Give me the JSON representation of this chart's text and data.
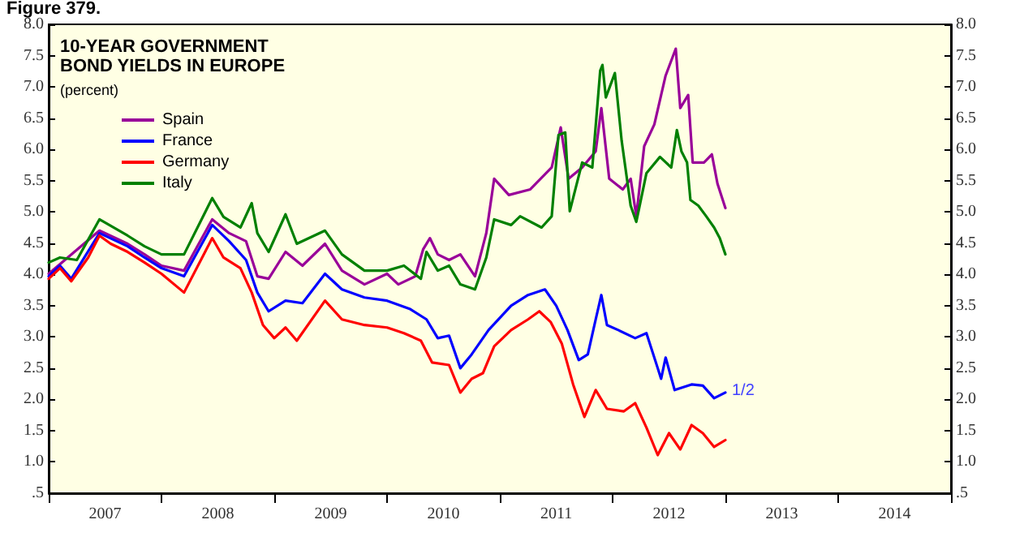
{
  "chart_data": {
    "type": "line",
    "title": "10-YEAR GOVERNMENT BOND YIELDS IN EUROPE",
    "subtitle": "(percent)",
    "annotations": [
      "Figure 379.",
      {
        "text": "1/2",
        "x": 2013.0,
        "y": 2.11
      }
    ],
    "legend": "top left",
    "marker": "none",
    "line_style": "solid",
    "xlim": [
      2007,
      2015
    ],
    "xticks": [
      {
        "value": 2007,
        "label": null
      },
      {
        "value": 2007.5,
        "label": "2007"
      },
      {
        "value": 2008,
        "label": null
      },
      {
        "value": 2008.5,
        "label": "2008"
      },
      {
        "value": 2009,
        "label": null
      },
      {
        "value": 2009.5,
        "label": "2009"
      },
      {
        "value": 2010,
        "label": null
      },
      {
        "value": 2010.5,
        "label": "2010"
      },
      {
        "value": 2011,
        "label": null
      },
      {
        "value": 2011.5,
        "label": "2011"
      },
      {
        "value": 2012,
        "label": null
      },
      {
        "value": 2012.5,
        "label": "2012"
      },
      {
        "value": 2013,
        "label": null
      },
      {
        "value": 2013.5,
        "label": "2013"
      },
      {
        "value": 2014,
        "label": null
      },
      {
        "value": 2014.5,
        "label": "2014"
      },
      {
        "value": 2015,
        "label": null
      }
    ],
    "ylim": [
      0.5,
      8.0
    ],
    "yticks": [
      {
        "value": 0.5,
        "label": ".5"
      },
      {
        "value": 1.0,
        "label": "1.0"
      },
      {
        "value": 1.5,
        "label": "1.5"
      },
      {
        "value": 2.0,
        "label": "2.0"
      },
      {
        "value": 2.5,
        "label": "2.5"
      },
      {
        "value": 3.0,
        "label": "3.0"
      },
      {
        "value": 3.5,
        "label": "3.5"
      },
      {
        "value": 4.0,
        "label": "4.0"
      },
      {
        "value": 4.5,
        "label": "4.5"
      },
      {
        "value": 5.0,
        "label": "5.0"
      },
      {
        "value": 5.5,
        "label": "5.5"
      },
      {
        "value": 6.0,
        "label": "6.0"
      },
      {
        "value": 6.5,
        "label": "6.5"
      },
      {
        "value": 7.0,
        "label": "7.0"
      },
      {
        "value": 7.5,
        "label": "7.5"
      },
      {
        "value": 8.0,
        "label": "8.0"
      }
    ],
    "y2lim": [
      0.5,
      8.0
    ],
    "y2ticks": [
      {
        "value": 0.5,
        "label": ".5"
      },
      {
        "value": 1.0,
        "label": "1.0"
      },
      {
        "value": 1.5,
        "label": "1.5"
      },
      {
        "value": 2.0,
        "label": "2.0"
      },
      {
        "value": 2.5,
        "label": "2.5"
      },
      {
        "value": 3.0,
        "label": "3.0"
      },
      {
        "value": 3.5,
        "label": "3.5"
      },
      {
        "value": 4.0,
        "label": "4.0"
      },
      {
        "value": 4.5,
        "label": "4.5"
      },
      {
        "value": 5.0,
        "label": "5.0"
      },
      {
        "value": 5.5,
        "label": "5.5"
      },
      {
        "value": 6.0,
        "label": "6.0"
      },
      {
        "value": 6.5,
        "label": "6.5"
      },
      {
        "value": 7.0,
        "label": "7.0"
      },
      {
        "value": 7.5,
        "label": "7.5"
      },
      {
        "value": 8.0,
        "label": "8.0"
      }
    ],
    "series": [
      {
        "name": "Spain",
        "color": "#990099",
        "x": [
          2007.0,
          2007.45,
          2007.7,
          2007.85,
          2008.0,
          2008.2,
          2008.45,
          2008.6,
          2008.75,
          2008.85,
          2008.95,
          2009.1,
          2009.25,
          2009.45,
          2009.6,
          2009.8,
          2010.0,
          2010.1,
          2010.25,
          2010.32,
          2010.38,
          2010.45,
          2010.55,
          2010.65,
          2010.78,
          2010.88,
          2010.95,
          2011.08,
          2011.27,
          2011.46,
          2011.54,
          2011.61,
          2011.73,
          2011.85,
          2011.9,
          2011.97,
          2012.09,
          2012.16,
          2012.21,
          2012.28,
          2012.37,
          2012.47,
          2012.56,
          2012.6,
          2012.67,
          2012.71,
          2012.81,
          2012.88,
          2012.93,
          2013.0
        ],
        "values": [
          4.01,
          4.7,
          4.49,
          4.32,
          4.14,
          4.06,
          4.88,
          4.66,
          4.53,
          3.97,
          3.93,
          4.36,
          4.14,
          4.49,
          4.06,
          3.84,
          4.01,
          3.84,
          3.97,
          4.4,
          4.58,
          4.32,
          4.23,
          4.32,
          3.97,
          4.66,
          5.53,
          5.27,
          5.36,
          5.71,
          6.35,
          5.53,
          5.71,
          5.97,
          6.66,
          5.53,
          5.36,
          5.53,
          4.93,
          6.05,
          6.4,
          7.18,
          7.61,
          6.66,
          6.87,
          5.79,
          5.79,
          5.92,
          5.45,
          5.06
        ]
      },
      {
        "name": "France",
        "color": "#0000ff",
        "x": [
          2007.0,
          2007.1,
          2007.2,
          2007.45,
          2007.7,
          2007.85,
          2008.0,
          2008.2,
          2008.45,
          2008.6,
          2008.75,
          2008.85,
          2008.95,
          2009.1,
          2009.25,
          2009.45,
          2009.6,
          2009.8,
          2010.0,
          2010.2,
          2010.35,
          2010.45,
          2010.55,
          2010.65,
          2010.75,
          2010.9,
          2011.1,
          2011.25,
          2011.4,
          2011.5,
          2011.6,
          2011.7,
          2011.78,
          2011.85,
          2011.9,
          2011.95,
          2012.05,
          2012.2,
          2012.3,
          2012.4,
          2012.43,
          2012.47,
          2012.55,
          2012.7,
          2012.8,
          2012.9,
          2013.0
        ],
        "values": [
          3.97,
          4.14,
          3.93,
          4.66,
          4.45,
          4.27,
          4.1,
          3.97,
          4.79,
          4.53,
          4.23,
          3.71,
          3.41,
          3.58,
          3.54,
          4.01,
          3.76,
          3.63,
          3.58,
          3.45,
          3.28,
          2.98,
          3.02,
          2.5,
          2.72,
          3.11,
          3.5,
          3.67,
          3.76,
          3.5,
          3.11,
          2.63,
          2.72,
          3.28,
          3.67,
          3.19,
          3.11,
          2.98,
          3.06,
          2.5,
          2.33,
          2.67,
          2.15,
          2.24,
          2.22,
          2.02,
          2.11
        ]
      },
      {
        "name": "Germany",
        "color": "#ff0000",
        "x": [
          2007.0,
          2007.1,
          2007.2,
          2007.35,
          2007.45,
          2007.55,
          2007.7,
          2007.85,
          2008.0,
          2008.2,
          2008.45,
          2008.55,
          2008.7,
          2008.8,
          2008.9,
          2009.0,
          2009.1,
          2009.2,
          2009.45,
          2009.6,
          2009.8,
          2010.0,
          2010.15,
          2010.3,
          2010.4,
          2010.55,
          2010.65,
          2010.75,
          2010.85,
          2010.95,
          2011.1,
          2011.25,
          2011.35,
          2011.45,
          2011.55,
          2011.65,
          2011.75,
          2011.85,
          2011.95,
          2012.1,
          2012.2,
          2012.3,
          2012.4,
          2012.5,
          2012.6,
          2012.7,
          2012.8,
          2012.9,
          2013.0
        ],
        "values": [
          3.93,
          4.1,
          3.89,
          4.27,
          4.62,
          4.49,
          4.36,
          4.19,
          4.01,
          3.71,
          4.58,
          4.27,
          4.1,
          3.71,
          3.19,
          2.98,
          3.15,
          2.94,
          3.58,
          3.28,
          3.19,
          3.15,
          3.06,
          2.94,
          2.59,
          2.55,
          2.11,
          2.33,
          2.42,
          2.85,
          3.11,
          3.28,
          3.41,
          3.24,
          2.89,
          2.24,
          1.72,
          2.15,
          1.85,
          1.81,
          1.94,
          1.55,
          1.11,
          1.46,
          1.2,
          1.59,
          1.46,
          1.24,
          1.35
        ]
      },
      {
        "name": "Italy",
        "color": "#008000",
        "x": [
          2007.0,
          2007.1,
          2007.25,
          2007.45,
          2007.7,
          2007.85,
          2008.0,
          2008.2,
          2008.45,
          2008.55,
          2008.7,
          2008.8,
          2008.85,
          2008.95,
          2009.1,
          2009.2,
          2009.45,
          2009.6,
          2009.8,
          2010.0,
          2010.15,
          2010.3,
          2010.35,
          2010.45,
          2010.55,
          2010.65,
          2010.78,
          2010.88,
          2010.95,
          2011.1,
          2011.18,
          2011.37,
          2011.46,
          2011.52,
          2011.58,
          2011.62,
          2011.73,
          2011.82,
          2011.89,
          2011.91,
          2011.94,
          2012.02,
          2012.08,
          2012.16,
          2012.21,
          2012.3,
          2012.42,
          2012.52,
          2012.57,
          2012.61,
          2012.66,
          2012.69,
          2012.76,
          2012.83,
          2012.9,
          2012.95,
          2013.0
        ],
        "values": [
          4.19,
          4.27,
          4.23,
          4.88,
          4.62,
          4.45,
          4.32,
          4.32,
          5.22,
          4.92,
          4.75,
          5.14,
          4.66,
          4.36,
          4.96,
          4.49,
          4.7,
          4.32,
          4.06,
          4.06,
          4.14,
          3.93,
          4.36,
          4.06,
          4.14,
          3.84,
          3.76,
          4.27,
          4.88,
          4.79,
          4.93,
          4.75,
          4.93,
          6.23,
          6.27,
          5.01,
          5.79,
          5.71,
          7.26,
          7.35,
          6.83,
          7.22,
          6.14,
          5.1,
          4.84,
          5.62,
          5.88,
          5.71,
          6.31,
          5.97,
          5.79,
          5.19,
          5.1,
          4.93,
          4.75,
          4.58,
          4.32
        ]
      }
    ]
  }
}
